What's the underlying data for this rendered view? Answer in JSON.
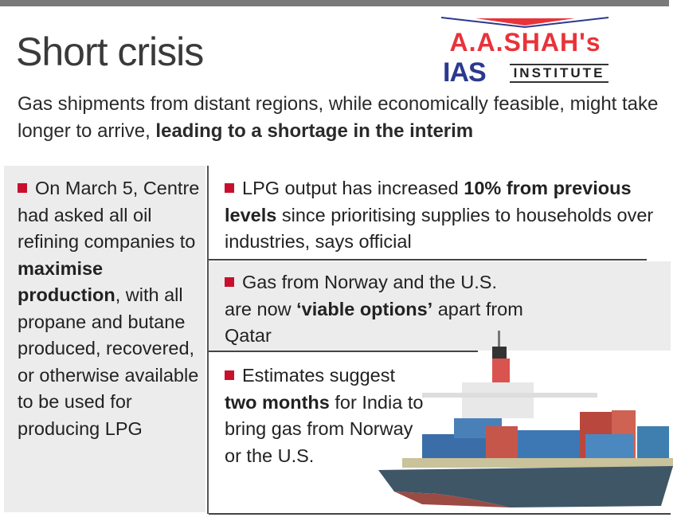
{
  "header": {
    "title": "Short crisis",
    "subtitle_plain": "Gas shipments from distant regions, while economically feasible, might take longer to arrive, ",
    "subtitle_bold": "leading to a  shortage in the interim"
  },
  "logo": {
    "line1": "A.A.SHAH's",
    "line2a": "IAS",
    "line2b": "INSTITUTE"
  },
  "left_panel": {
    "p1": "On March 5, Centre had asked all oil refining companies to ",
    "b1": "maximise production",
    "p2": ", with all propane and butane produced, recovered, or otherwise available to be used for producing LPG"
  },
  "points": [
    {
      "p1": "LPG output has increased ",
      "b1": "10% from previous levels",
      "p2": " since prioritising supplies to households over industries, says official"
    },
    {
      "p1": "Gas from Norway and the U.S. are now ",
      "b1": "‘viable options’",
      "p2": " apart from Qatar"
    },
    {
      "p1": "Estimates suggest ",
      "b1": "two months",
      "p2": " for India to bring gas  from Norway or the U.S."
    }
  ],
  "colors": {
    "bullet": "#c8102e",
    "panel": "#ececec",
    "logo_red": "#e8333a",
    "logo_blue": "#2b3990"
  }
}
